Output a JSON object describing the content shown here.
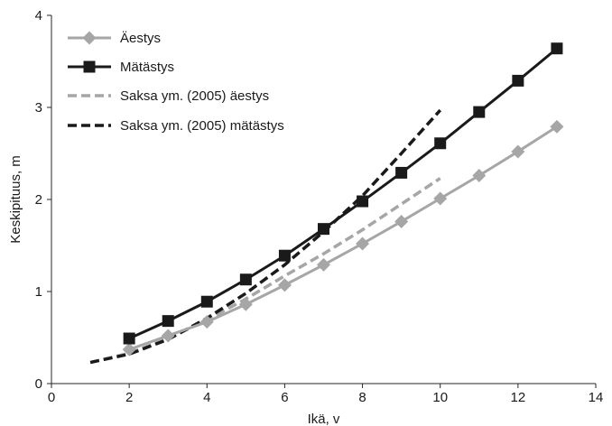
{
  "chart_data": {
    "type": "line",
    "xlabel": "Ikä, v",
    "ylabel": "Keskipituus, m",
    "xlim": [
      0,
      14
    ],
    "ylim": [
      0,
      4
    ],
    "xticks": [
      0,
      2,
      4,
      6,
      8,
      10,
      12,
      14
    ],
    "yticks": [
      0,
      1,
      2,
      3,
      4
    ],
    "grid": false,
    "legend_position": "top-left",
    "series": [
      {
        "name": "Äestys",
        "style": "solid",
        "marker": "diamond",
        "color": "#a6a6a6",
        "x": [
          2,
          3,
          4,
          5,
          6,
          7,
          8,
          9,
          10,
          11,
          12,
          13
        ],
        "y": [
          0.37,
          0.52,
          0.67,
          0.86,
          1.07,
          1.29,
          1.52,
          1.76,
          2.01,
          2.26,
          2.52,
          2.79
        ]
      },
      {
        "name": "Mätästys",
        "style": "solid",
        "marker": "square",
        "color": "#1a1a1a",
        "x": [
          2,
          3,
          4,
          5,
          6,
          7,
          8,
          9,
          10,
          11,
          12,
          13
        ],
        "y": [
          0.49,
          0.68,
          0.89,
          1.13,
          1.39,
          1.68,
          1.98,
          2.29,
          2.61,
          2.95,
          3.29,
          3.64
        ]
      },
      {
        "name": "Saksa ym. (2005) äestys",
        "style": "dashed",
        "marker": "none",
        "color": "#a6a6a6",
        "x": [
          1,
          2,
          3,
          4,
          5,
          6,
          7,
          8,
          9,
          10
        ],
        "y": [
          0.23,
          0.33,
          0.49,
          0.69,
          0.92,
          1.17,
          1.41,
          1.67,
          1.95,
          2.23
        ]
      },
      {
        "name": "Saksa ym. (2005) mätästys",
        "style": "dashed",
        "marker": "none",
        "color": "#1a1a1a",
        "x": [
          1,
          2,
          3,
          4,
          5,
          6,
          7,
          8,
          9,
          10
        ],
        "y": [
          0.23,
          0.32,
          0.48,
          0.71,
          0.98,
          1.29,
          1.65,
          2.04,
          2.5,
          2.97
        ]
      }
    ]
  }
}
